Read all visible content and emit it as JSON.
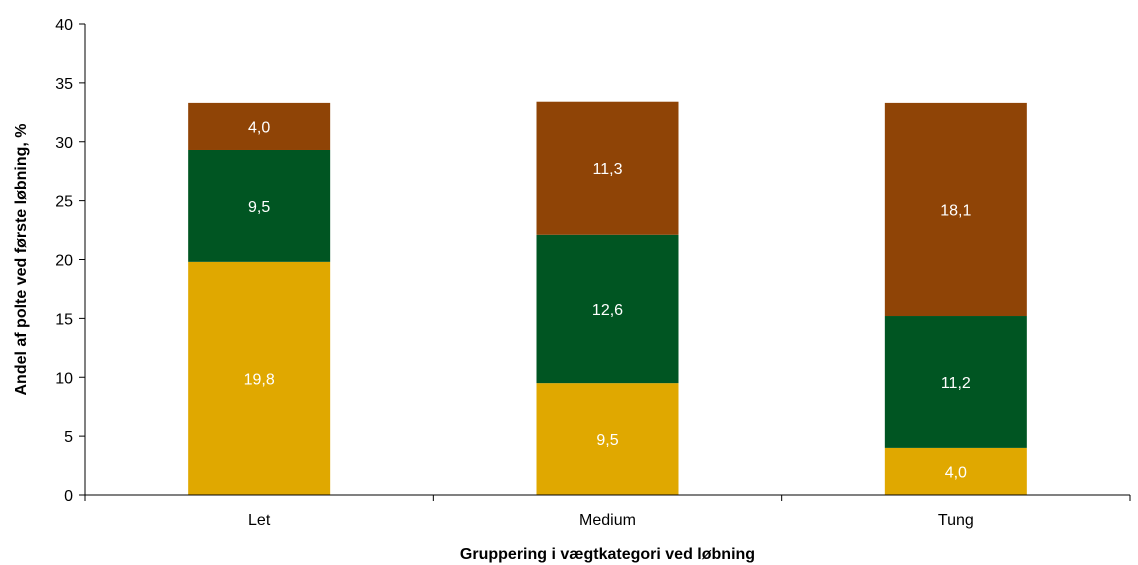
{
  "chart_data": {
    "type": "bar",
    "stacked": true,
    "title": "",
    "xlabel": "Gruppering i vægtkategori ved løbning",
    "ylabel": "Andel af polte ved første løbning, %",
    "ylim": [
      0,
      40
    ],
    "yticks": [
      0,
      5,
      10,
      15,
      20,
      25,
      30,
      35,
      40
    ],
    "categories": [
      "Let",
      "Medium",
      "Tung"
    ],
    "series": [
      {
        "values": [
          19.8,
          9.5,
          4.0
        ],
        "labels": [
          "19,8",
          "9,5",
          "4,0"
        ],
        "color": "#E0A800"
      },
      {
        "values": [
          9.5,
          12.6,
          11.2
        ],
        "labels": [
          "9,5",
          "12,6",
          "11,2"
        ],
        "color": "#005522"
      },
      {
        "values": [
          4.0,
          11.3,
          18.1
        ],
        "labels": [
          "4,0",
          "11,3",
          "18,1"
        ],
        "color": "#8F4406"
      }
    ],
    "grid": false,
    "legend": "none"
  }
}
